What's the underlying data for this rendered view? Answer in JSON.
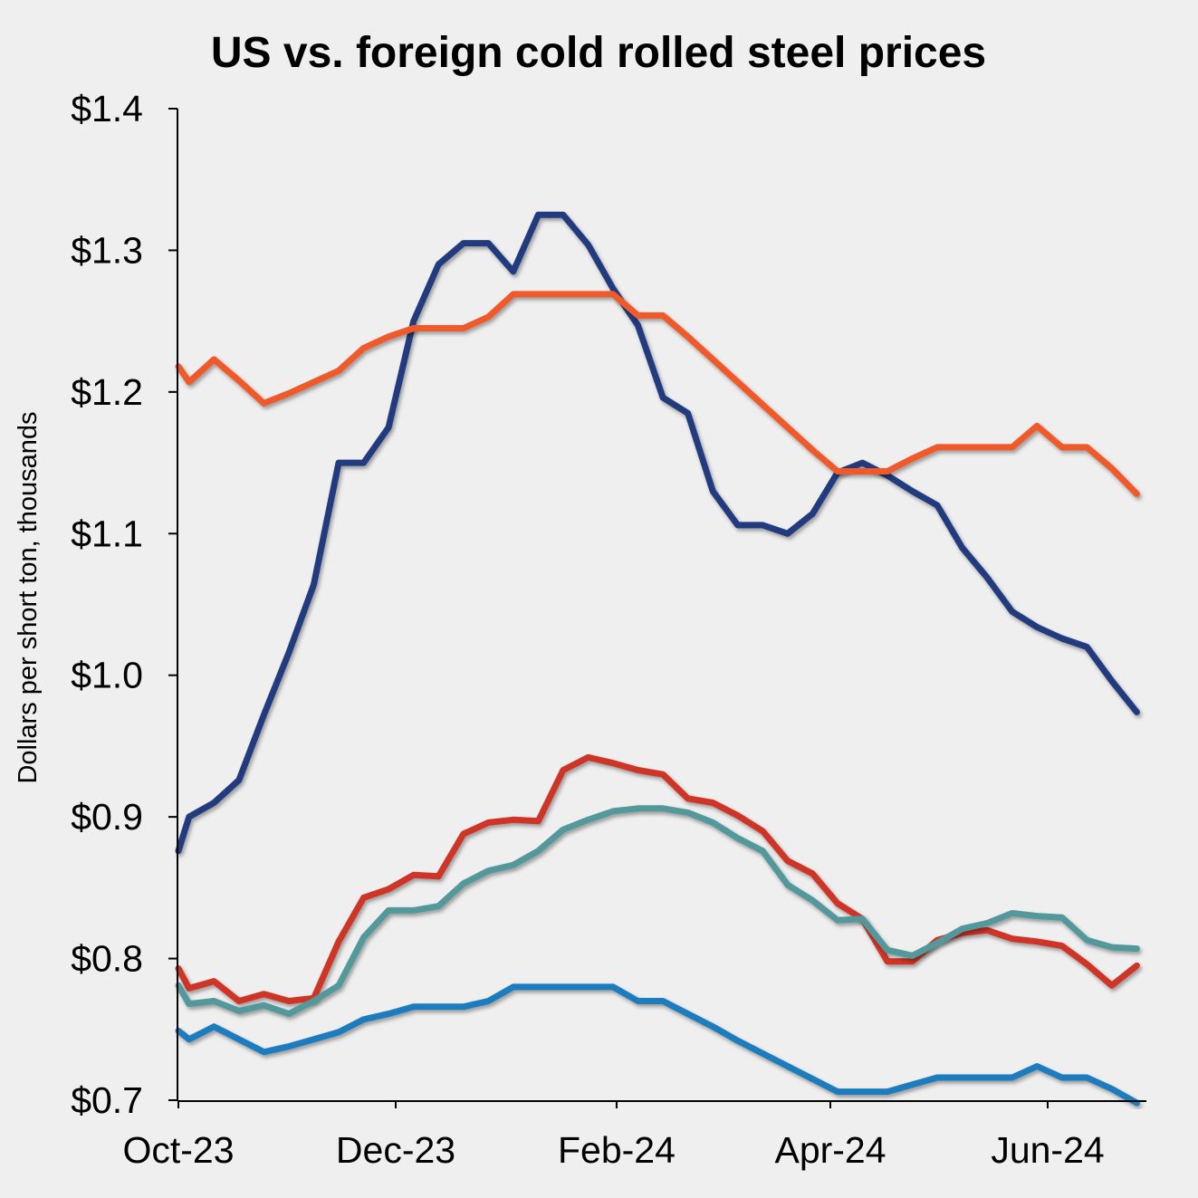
{
  "chart_data": {
    "type": "line",
    "title": "US vs. foreign cold rolled steel prices",
    "xlabel": "",
    "ylabel": "Dollars per short ton, thousands",
    "ylim": [
      0.7,
      1.4
    ],
    "yticks": [
      0.7,
      0.8,
      0.9,
      1.0,
      1.1,
      1.2,
      1.3,
      1.4
    ],
    "ytick_labels": [
      "$0.7",
      "$0.8",
      "$0.9",
      "$1.0",
      "$1.1",
      "$1.2",
      "$1.3",
      "$1.4"
    ],
    "xticks": [
      "2023-10-01",
      "2023-12-01",
      "2024-02-01",
      "2024-04-01",
      "2024-06-01"
    ],
    "xtick_labels": [
      "Oct-23",
      "Dec-23",
      "Feb-24",
      "Apr-24",
      "Jun-24"
    ],
    "grid": false,
    "legend": "none",
    "x": [
      "2023-10-01",
      "2023-10-04",
      "2023-10-11",
      "2023-10-18",
      "2023-10-25",
      "2023-11-01",
      "2023-11-08",
      "2023-11-15",
      "2023-11-22",
      "2023-11-29",
      "2023-12-06",
      "2023-12-13",
      "2023-12-20",
      "2023-12-27",
      "2024-01-03",
      "2024-01-10",
      "2024-01-17",
      "2024-01-24",
      "2024-01-31",
      "2024-02-07",
      "2024-02-14",
      "2024-02-21",
      "2024-02-28",
      "2024-03-06",
      "2024-03-13",
      "2024-03-20",
      "2024-03-27",
      "2024-04-03",
      "2024-04-10",
      "2024-04-17",
      "2024-04-24",
      "2024-05-01",
      "2024-05-08",
      "2024-05-15",
      "2024-05-22",
      "2024-05-29",
      "2024-06-05",
      "2024-06-12",
      "2024-06-19",
      "2024-06-26"
    ],
    "series": [
      {
        "color": "#233a7e",
        "values": [
          0.876,
          0.9,
          0.91,
          0.926,
          0.972,
          1.016,
          1.064,
          1.15,
          1.15,
          1.175,
          1.25,
          1.29,
          1.305,
          1.305,
          1.285,
          1.325,
          1.325,
          1.304,
          1.273,
          1.247,
          1.196,
          1.185,
          1.13,
          1.106,
          1.106,
          1.1,
          1.114,
          1.143,
          1.15,
          1.141,
          1.13,
          1.12,
          1.09,
          1.069,
          1.045,
          1.034,
          1.026,
          1.02,
          0.996,
          0.974
        ]
      },
      {
        "color": "#f05a2a",
        "values": [
          1.218,
          1.207,
          1.223,
          1.208,
          1.192,
          1.199,
          1.207,
          1.215,
          1.231,
          1.239,
          1.245,
          1.245,
          1.245,
          1.253,
          1.269,
          1.269,
          1.269,
          1.269,
          1.269,
          1.254,
          1.254,
          1.239,
          1.223,
          1.207,
          1.191,
          1.175,
          1.159,
          1.144,
          1.144,
          1.144,
          1.153,
          1.161,
          1.161,
          1.161,
          1.161,
          1.176,
          1.161,
          1.161,
          1.146,
          1.128
        ]
      },
      {
        "color": "#cf3426",
        "values": [
          0.793,
          0.779,
          0.784,
          0.77,
          0.775,
          0.77,
          0.772,
          0.812,
          0.843,
          0.849,
          0.859,
          0.858,
          0.888,
          0.896,
          0.898,
          0.897,
          0.933,
          0.942,
          0.938,
          0.933,
          0.93,
          0.913,
          0.91,
          0.901,
          0.89,
          0.869,
          0.86,
          0.839,
          0.828,
          0.798,
          0.798,
          0.813,
          0.818,
          0.82,
          0.814,
          0.812,
          0.809,
          0.796,
          0.781,
          0.795
        ]
      },
      {
        "color": "#52999c",
        "values": [
          0.781,
          0.768,
          0.77,
          0.763,
          0.767,
          0.761,
          0.77,
          0.781,
          0.815,
          0.834,
          0.834,
          0.837,
          0.853,
          0.862,
          0.866,
          0.876,
          0.891,
          0.898,
          0.904,
          0.906,
          0.906,
          0.903,
          0.896,
          0.885,
          0.876,
          0.852,
          0.841,
          0.827,
          0.828,
          0.806,
          0.802,
          0.811,
          0.821,
          0.825,
          0.832,
          0.83,
          0.829,
          0.813,
          0.808,
          0.807
        ]
      },
      {
        "color": "#1e7cbe",
        "values": [
          0.749,
          0.743,
          0.752,
          0.743,
          0.734,
          0.738,
          0.743,
          0.748,
          0.757,
          0.761,
          0.766,
          0.766,
          0.766,
          0.77,
          0.78,
          0.78,
          0.78,
          0.78,
          0.78,
          0.77,
          0.77,
          0.761,
          0.752,
          0.742,
          0.733,
          0.724,
          0.715,
          0.706,
          0.706,
          0.706,
          0.711,
          0.716,
          0.716,
          0.716,
          0.716,
          0.724,
          0.716,
          0.716,
          0.708,
          0.698
        ]
      }
    ]
  }
}
